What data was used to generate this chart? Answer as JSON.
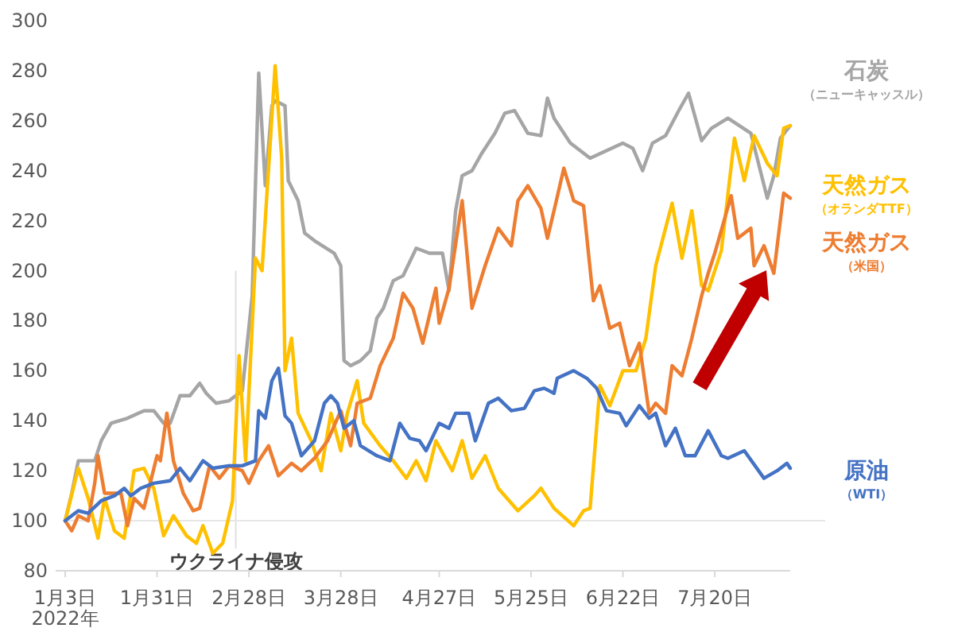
{
  "chart_data": {
    "type": "line",
    "xlim": [
      "2022-01-03",
      "2022-08-12"
    ],
    "ylim": [
      80,
      300
    ],
    "yticks": [
      80,
      100,
      120,
      140,
      160,
      180,
      200,
      220,
      240,
      260,
      280,
      300
    ],
    "xticks": [
      {
        "value": "2022-01-03",
        "label": "1月3日\n2022年"
      },
      {
        "value": "2022-01-31",
        "label": "1月31日"
      },
      {
        "value": "2022-02-28",
        "label": "2月28日"
      },
      {
        "value": "2022-03-28",
        "label": "3月28日"
      },
      {
        "value": "2022-04-27",
        "label": "4月27日"
      },
      {
        "value": "2022-05-25",
        "label": "5月25日"
      },
      {
        "value": "2022-06-22",
        "label": "6月22日"
      },
      {
        "value": "2022-07-20",
        "label": "7月20日"
      }
    ],
    "ref_lines": [
      {
        "axis": "x",
        "value": "2022-02-24",
        "label": "ウクライナ侵攻",
        "color": "#e0e0e0"
      },
      {
        "axis": "y",
        "value": 100,
        "label": null,
        "color": "#e6e6e6"
      }
    ],
    "series": [
      {
        "name": "石炭（ニューキャッスル）",
        "color": "#a5a5a5",
        "x": [
          "2022-01-03",
          "2022-01-05",
          "2022-01-07",
          "2022-01-12",
          "2022-01-14",
          "2022-01-17",
          "2022-01-22",
          "2022-01-27",
          "2022-01-30",
          "2022-02-02",
          "2022-02-04",
          "2022-02-07",
          "2022-02-10",
          "2022-02-13",
          "2022-02-15",
          "2022-02-18",
          "2022-02-22",
          "2022-02-26",
          "2022-03-01",
          "2022-03-03",
          "2022-03-05",
          "2022-03-07",
          "2022-03-08",
          "2022-03-11",
          "2022-03-12",
          "2022-03-15",
          "2022-03-17",
          "2022-03-20",
          "2022-03-26",
          "2022-03-28",
          "2022-03-29",
          "2022-03-31",
          "2022-04-03",
          "2022-04-06",
          "2022-04-08",
          "2022-04-10",
          "2022-04-13",
          "2022-04-16",
          "2022-04-20",
          "2022-04-24",
          "2022-04-28",
          "2022-04-30",
          "2022-05-02",
          "2022-05-04",
          "2022-05-07",
          "2022-05-10",
          "2022-05-14",
          "2022-05-17",
          "2022-05-20",
          "2022-05-24",
          "2022-05-28",
          "2022-05-30",
          "2022-06-01",
          "2022-06-06",
          "2022-06-12",
          "2022-06-17",
          "2022-06-22",
          "2022-06-25",
          "2022-06-28",
          "2022-07-01",
          "2022-07-05",
          "2022-07-09",
          "2022-07-12",
          "2022-07-16",
          "2022-07-19",
          "2022-07-24",
          "2022-07-31",
          "2022-08-05",
          "2022-08-07",
          "2022-08-09",
          "2022-08-12"
        ],
        "values": [
          100,
          111,
          124,
          124,
          132,
          139,
          141,
          144,
          144,
          139,
          139,
          150,
          150,
          155,
          151,
          147,
          148,
          152,
          190,
          279,
          234,
          266,
          268,
          266,
          236,
          228,
          215,
          212,
          207,
          202,
          164,
          162,
          164,
          168,
          181,
          185,
          196,
          198,
          209,
          207,
          207,
          192,
          224,
          238,
          240,
          247,
          255,
          263,
          264,
          255,
          254,
          269,
          261,
          251,
          245,
          248,
          251,
          249,
          240,
          251,
          254,
          264,
          271,
          252,
          257,
          261,
          255,
          229,
          238,
          253,
          258
        ]
      },
      {
        "name": "天然ガス（オランダTTF）",
        "color": "#ffc000",
        "x": [
          "2022-01-03",
          "2022-01-07",
          "2022-01-10",
          "2022-01-13",
          "2022-01-15",
          "2022-01-18",
          "2022-01-21",
          "2022-01-24",
          "2022-01-27",
          "2022-01-30",
          "2022-02-02",
          "2022-02-05",
          "2022-02-09",
          "2022-02-12",
          "2022-02-14",
          "2022-02-17",
          "2022-02-20",
          "2022-02-23",
          "2022-02-25",
          "2022-02-27",
          "2022-03-02",
          "2022-03-04",
          "2022-03-08",
          "2022-03-10",
          "2022-03-11",
          "2022-03-13",
          "2022-03-15",
          "2022-03-19",
          "2022-03-22",
          "2022-03-25",
          "2022-03-28",
          "2022-03-30",
          "2022-04-02",
          "2022-04-04",
          "2022-04-09",
          "2022-04-13",
          "2022-04-17",
          "2022-04-20",
          "2022-04-23",
          "2022-04-26",
          "2022-05-01",
          "2022-05-04",
          "2022-05-07",
          "2022-05-11",
          "2022-05-15",
          "2022-05-21",
          "2022-05-26",
          "2022-05-28",
          "2022-06-01",
          "2022-06-07",
          "2022-06-10",
          "2022-06-12",
          "2022-06-15",
          "2022-06-18",
          "2022-06-22",
          "2022-06-26",
          "2022-06-29",
          "2022-07-02",
          "2022-07-07",
          "2022-07-10",
          "2022-07-13",
          "2022-07-16",
          "2022-07-18",
          "2022-07-22",
          "2022-07-26",
          "2022-07-29",
          "2022-08-01",
          "2022-08-05",
          "2022-08-08",
          "2022-08-10",
          "2022-08-12"
        ],
        "values": [
          100,
          121,
          109,
          93,
          109,
          96,
          93,
          120,
          121,
          113,
          94,
          102,
          94,
          91,
          98,
          87,
          91,
          108,
          166,
          124,
          205,
          200,
          282,
          245,
          160,
          173,
          143,
          132,
          120,
          143,
          128,
          143,
          156,
          139,
          130,
          124,
          117,
          124,
          116,
          132,
          120,
          132,
          117,
          126,
          113,
          104,
          110,
          113,
          105,
          98,
          104,
          105,
          154,
          146,
          160,
          160,
          173,
          202,
          227,
          205,
          224,
          194,
          192,
          208,
          253,
          236,
          254,
          243,
          238,
          257,
          258
        ]
      },
      {
        "name": "天然ガス（米国）",
        "color": "#ed7d31",
        "x": [
          "2022-01-03",
          "2022-01-05",
          "2022-01-07",
          "2022-01-10",
          "2022-01-12",
          "2022-01-13",
          "2022-01-15",
          "2022-01-20",
          "2022-01-22",
          "2022-01-24",
          "2022-01-27",
          "2022-01-31",
          "2022-02-01",
          "2022-02-03",
          "2022-02-05",
          "2022-02-08",
          "2022-02-11",
          "2022-02-13",
          "2022-02-16",
          "2022-02-19",
          "2022-02-22",
          "2022-02-26",
          "2022-02-28",
          "2022-03-03",
          "2022-03-06",
          "2022-03-09",
          "2022-03-13",
          "2022-03-16",
          "2022-03-20",
          "2022-03-24",
          "2022-03-28",
          "2022-03-31",
          "2022-04-02",
          "2022-04-06",
          "2022-04-09",
          "2022-04-13",
          "2022-04-16",
          "2022-04-19",
          "2022-04-22",
          "2022-04-26",
          "2022-04-27",
          "2022-04-30",
          "2022-05-04",
          "2022-05-07",
          "2022-05-11",
          "2022-05-15",
          "2022-05-19",
          "2022-05-21",
          "2022-05-24",
          "2022-05-28",
          "2022-05-30",
          "2022-06-01",
          "2022-06-04",
          "2022-06-07",
          "2022-06-10",
          "2022-06-13",
          "2022-06-15",
          "2022-06-18",
          "2022-06-21",
          "2022-06-24",
          "2022-06-27",
          "2022-06-30",
          "2022-07-02",
          "2022-07-05",
          "2022-07-07",
          "2022-07-10",
          "2022-07-13",
          "2022-07-16",
          "2022-07-18",
          "2022-07-20",
          "2022-07-25",
          "2022-07-27",
          "2022-07-31",
          "2022-08-01",
          "2022-08-04",
          "2022-08-07",
          "2022-08-10",
          "2022-08-12"
        ],
        "values": [
          100,
          96,
          102,
          100,
          115,
          126,
          111,
          111,
          98,
          109,
          105,
          126,
          124,
          143,
          124,
          111,
          104,
          105,
          122,
          117,
          122,
          120,
          115,
          124,
          130,
          118,
          123,
          120,
          125,
          132,
          144,
          130,
          147,
          149,
          162,
          173,
          191,
          185,
          171,
          193,
          179,
          193,
          228,
          185,
          202,
          217,
          210,
          228,
          234,
          225,
          213,
          224,
          241,
          228,
          226,
          188,
          194,
          177,
          179,
          162,
          171,
          143,
          147,
          143,
          162,
          158,
          173,
          190,
          199,
          207,
          230,
          213,
          217,
          202,
          210,
          199,
          231,
          229
        ]
      },
      {
        "name": "原油（WTI）",
        "color": "#4472c4",
        "x": [
          "2022-01-03",
          "2022-01-07",
          "2022-01-10",
          "2022-01-14",
          "2022-01-18",
          "2022-01-21",
          "2022-01-23",
          "2022-01-26",
          "2022-01-30",
          "2022-02-04",
          "2022-02-07",
          "2022-02-10",
          "2022-02-14",
          "2022-02-17",
          "2022-02-22",
          "2022-02-26",
          "2022-03-02",
          "2022-03-03",
          "2022-03-05",
          "2022-03-07",
          "2022-03-09",
          "2022-03-11",
          "2022-03-13",
          "2022-03-16",
          "2022-03-20",
          "2022-03-23",
          "2022-03-25",
          "2022-03-27",
          "2022-03-29",
          "2022-04-01",
          "2022-04-03",
          "2022-04-08",
          "2022-04-12",
          "2022-04-15",
          "2022-04-18",
          "2022-04-21",
          "2022-04-23",
          "2022-04-27",
          "2022-04-30",
          "2022-05-02",
          "2022-05-06",
          "2022-05-08",
          "2022-05-12",
          "2022-05-15",
          "2022-05-19",
          "2022-05-23",
          "2022-05-26",
          "2022-05-29",
          "2022-06-01",
          "2022-06-02",
          "2022-06-07",
          "2022-06-11",
          "2022-06-14",
          "2022-06-17",
          "2022-06-21",
          "2022-06-23",
          "2022-06-27",
          "2022-06-30",
          "2022-07-02",
          "2022-07-05",
          "2022-07-08",
          "2022-07-11",
          "2022-07-14",
          "2022-07-18",
          "2022-07-22",
          "2022-07-24",
          "2022-07-29",
          "2022-08-04",
          "2022-08-08",
          "2022-08-11",
          "2022-08-12"
        ],
        "values": [
          100,
          104,
          103,
          108,
          110,
          113,
          110,
          113,
          115,
          116,
          121,
          116,
          124,
          121,
          122,
          122,
          124,
          144,
          141,
          156,
          161,
          142,
          139,
          126,
          132,
          147,
          150,
          147,
          137,
          140,
          130,
          126,
          124,
          139,
          133,
          132,
          128,
          139,
          137,
          143,
          143,
          132,
          147,
          149,
          144,
          145,
          152,
          153,
          151,
          157,
          160,
          157,
          153,
          144,
          143,
          138,
          146,
          141,
          143,
          130,
          137,
          126,
          126,
          136,
          126,
          125,
          128,
          117,
          120,
          123,
          121
        ]
      }
    ]
  }
}
